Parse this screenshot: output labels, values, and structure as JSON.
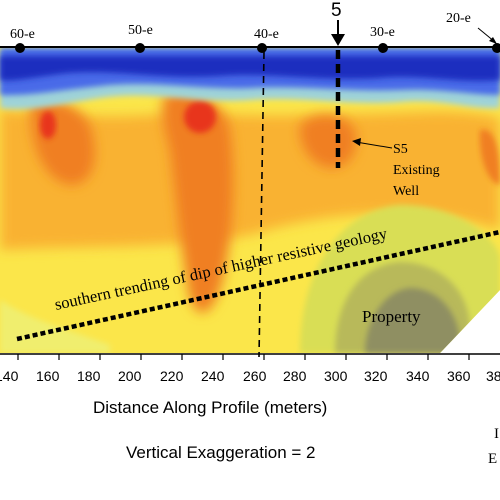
{
  "section": {
    "electrode_labels": [
      "60-e",
      "50-e",
      "40-e",
      "30-e",
      "20-e"
    ],
    "station_marker": "5",
    "well_label_lines": [
      "S5",
      "Existing",
      "Well"
    ],
    "geology_annotation": "southern trending of dip of higher resistive geology",
    "property_label": "Property",
    "x_ticks": [
      "140",
      "160",
      "180",
      "200",
      "220",
      "240",
      "260",
      "280",
      "300",
      "320",
      "340",
      "360",
      "38"
    ],
    "x_axis_label": "Distance Along Profile (meters)",
    "vertical_exaggeration": "Vertical Exaggeration = 2",
    "edge_fragments": [
      "I",
      "E"
    ]
  },
  "palette": {
    "conductive_deep": "#1a2fbf",
    "conductive": "#4a6ae8",
    "transition": "#9fd3d8",
    "yellow_green": "#d9de55",
    "yellow": "#fbe64a",
    "orange_light": "#f9b233",
    "orange": "#f07f22",
    "red": "#e8351c",
    "resistive_olive": "#8f8f62"
  }
}
